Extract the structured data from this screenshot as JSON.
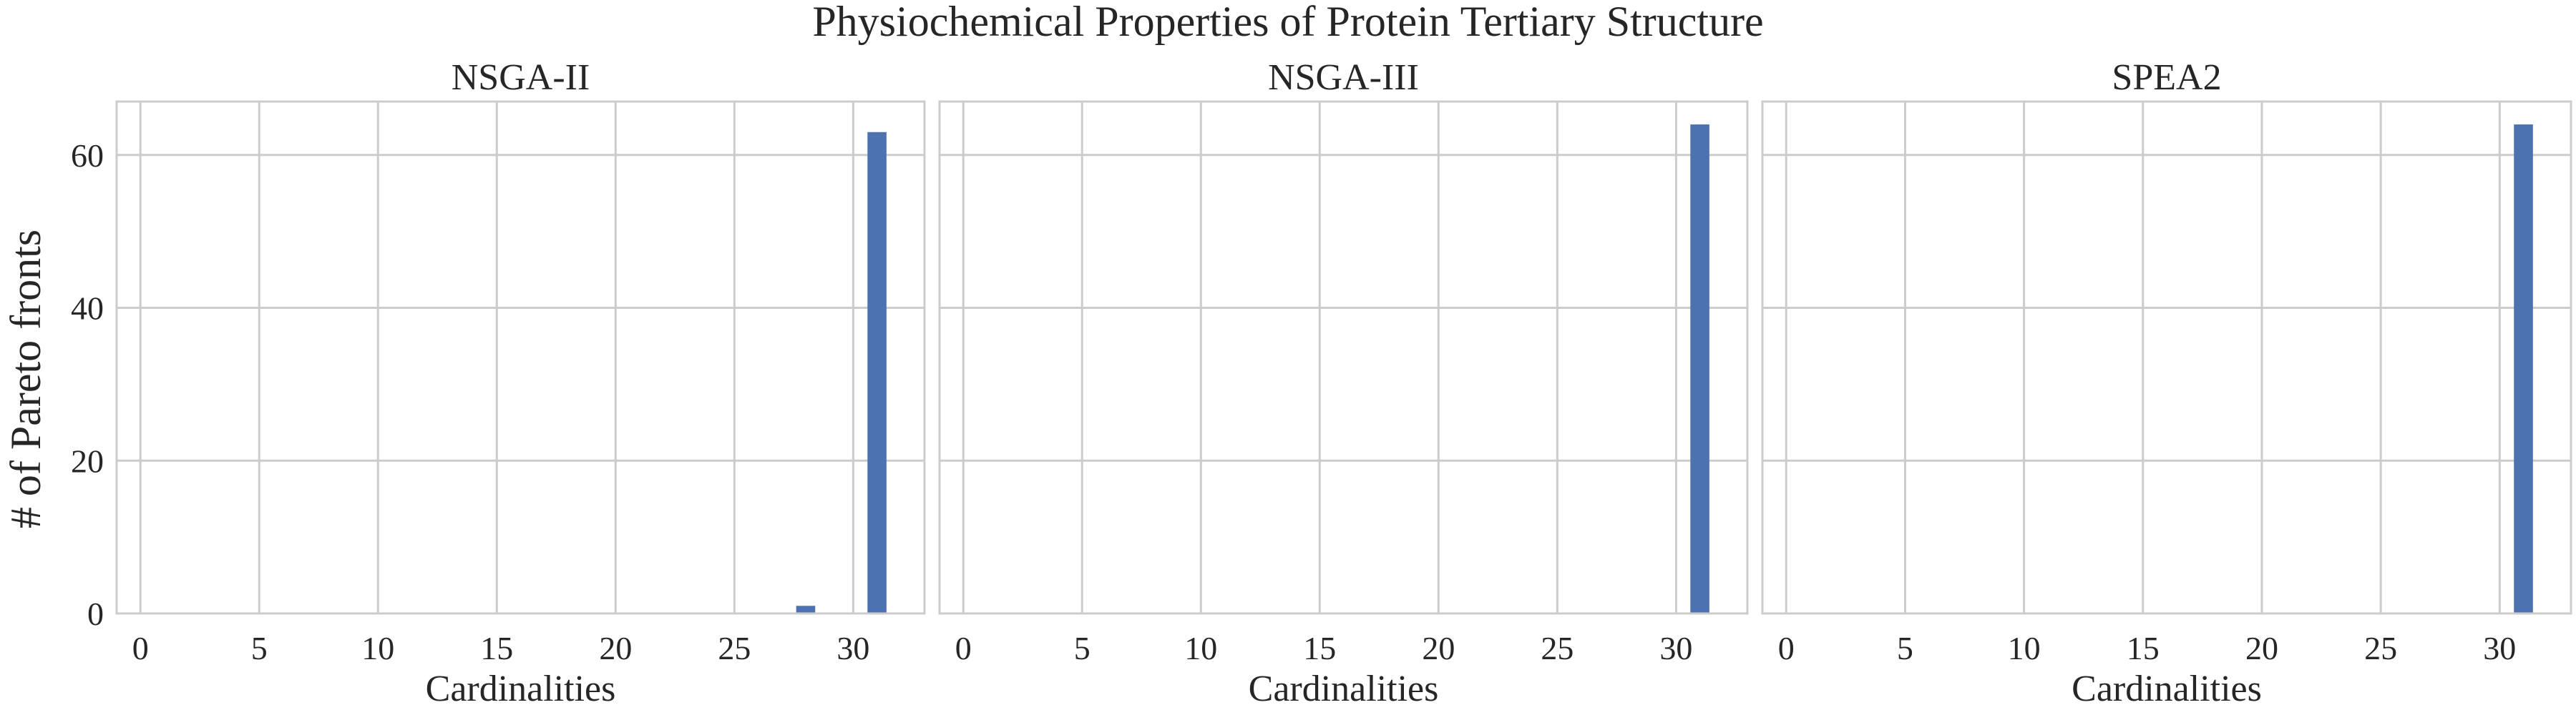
{
  "chart_data": {
    "type": "bar",
    "title": "Physiochemical Properties of Protein Tertiary Structure",
    "ylabel": "# of Pareto fronts",
    "ylim": [
      0,
      67
    ],
    "yticks": [
      0,
      20,
      40,
      60
    ],
    "grid": true,
    "bar_color": "#4c72b0",
    "subplots": [
      {
        "title": "NSGA-II",
        "xlabel": "Cardinalities",
        "xlim": [
          -1,
          33
        ],
        "xticks": [
          0,
          5,
          10,
          15,
          20,
          25,
          30
        ],
        "bars": [
          {
            "x": 28,
            "value": 1
          },
          {
            "x": 31,
            "value": 63
          }
        ]
      },
      {
        "title": "NSGA-III",
        "xlabel": "Cardinalities",
        "xlim": [
          -1,
          33
        ],
        "xticks": [
          0,
          5,
          10,
          15,
          20,
          25,
          30
        ],
        "bars": [
          {
            "x": 31,
            "value": 64
          }
        ]
      },
      {
        "title": "SPEA2",
        "xlabel": "Cardinalities",
        "xlim": [
          -1,
          33
        ],
        "xticks": [
          0,
          5,
          10,
          15,
          20,
          25,
          30
        ],
        "bars": [
          {
            "x": 31,
            "value": 64
          }
        ]
      }
    ]
  }
}
